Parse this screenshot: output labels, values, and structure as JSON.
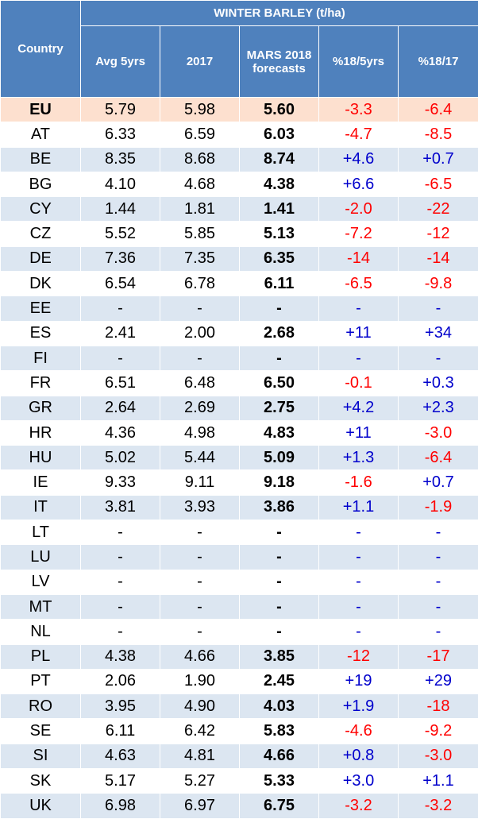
{
  "title": "WINTER BARLEY (t/ha)",
  "headers": {
    "country": "Country",
    "avg5": "Avg 5yrs",
    "y2017": "2017",
    "mars_line1": "MARS 2018",
    "mars_line2": "forecasts",
    "pct5": "%18/5yrs",
    "pct17": "%18/17"
  },
  "colors": {
    "header_bg": "#4f81bd",
    "band_blue": "#dce6f1",
    "eu_band": "#fde0cf",
    "negative": "#ff0000",
    "positive": "#0000cc"
  },
  "rows": [
    {
      "country": "EU",
      "avg5": "5.79",
      "y2017": "5.98",
      "mars": "5.60",
      "pct5": "-3.3",
      "pct17": "-6.4"
    },
    {
      "country": "AT",
      "avg5": "6.33",
      "y2017": "6.59",
      "mars": "6.03",
      "pct5": "-4.7",
      "pct17": "-8.5"
    },
    {
      "country": "BE",
      "avg5": "8.35",
      "y2017": "8.68",
      "mars": "8.74",
      "pct5": "+4.6",
      "pct17": "+0.7"
    },
    {
      "country": "BG",
      "avg5": "4.10",
      "y2017": "4.68",
      "mars": "4.38",
      "pct5": "+6.6",
      "pct17": "-6.5"
    },
    {
      "country": "CY",
      "avg5": "1.44",
      "y2017": "1.81",
      "mars": "1.41",
      "pct5": "-2.0",
      "pct17": "-22"
    },
    {
      "country": "CZ",
      "avg5": "5.52",
      "y2017": "5.85",
      "mars": "5.13",
      "pct5": "-7.2",
      "pct17": "-12"
    },
    {
      "country": "DE",
      "avg5": "7.36",
      "y2017": "7.35",
      "mars": "6.35",
      "pct5": "-14",
      "pct17": "-14"
    },
    {
      "country": "DK",
      "avg5": "6.54",
      "y2017": "6.78",
      "mars": "6.11",
      "pct5": "-6.5",
      "pct17": "-9.8"
    },
    {
      "country": "EE",
      "avg5": "-",
      "y2017": "-",
      "mars": "-",
      "pct5": "-",
      "pct17": "-"
    },
    {
      "country": "ES",
      "avg5": "2.41",
      "y2017": "2.00",
      "mars": "2.68",
      "pct5": "+11",
      "pct17": "+34"
    },
    {
      "country": "FI",
      "avg5": "-",
      "y2017": "-",
      "mars": "-",
      "pct5": "-",
      "pct17": "-"
    },
    {
      "country": "FR",
      "avg5": "6.51",
      "y2017": "6.48",
      "mars": "6.50",
      "pct5": "-0.1",
      "pct17": "+0.3"
    },
    {
      "country": "GR",
      "avg5": "2.64",
      "y2017": "2.69",
      "mars": "2.75",
      "pct5": "+4.2",
      "pct17": "+2.3"
    },
    {
      "country": "HR",
      "avg5": "4.36",
      "y2017": "4.98",
      "mars": "4.83",
      "pct5": "+11",
      "pct17": "-3.0"
    },
    {
      "country": "HU",
      "avg5": "5.02",
      "y2017": "5.44",
      "mars": "5.09",
      "pct5": "+1.3",
      "pct17": "-6.4"
    },
    {
      "country": "IE",
      "avg5": "9.33",
      "y2017": "9.11",
      "mars": "9.18",
      "pct5": "-1.6",
      "pct17": "+0.7"
    },
    {
      "country": "IT",
      "avg5": "3.81",
      "y2017": "3.93",
      "mars": "3.86",
      "pct5": "+1.1",
      "pct17": "-1.9"
    },
    {
      "country": "LT",
      "avg5": "-",
      "y2017": "-",
      "mars": "-",
      "pct5": "-",
      "pct17": "-"
    },
    {
      "country": "LU",
      "avg5": "-",
      "y2017": "-",
      "mars": "-",
      "pct5": "-",
      "pct17": "-"
    },
    {
      "country": "LV",
      "avg5": "-",
      "y2017": "-",
      "mars": "-",
      "pct5": "-",
      "pct17": "-"
    },
    {
      "country": "MT",
      "avg5": "-",
      "y2017": "-",
      "mars": "-",
      "pct5": "-",
      "pct17": "-"
    },
    {
      "country": "NL",
      "avg5": "-",
      "y2017": "-",
      "mars": "-",
      "pct5": "-",
      "pct17": "-"
    },
    {
      "country": "PL",
      "avg5": "4.38",
      "y2017": "4.66",
      "mars": "3.85",
      "pct5": "-12",
      "pct17": "-17"
    },
    {
      "country": "PT",
      "avg5": "2.06",
      "y2017": "1.90",
      "mars": "2.45",
      "pct5": "+19",
      "pct17": "+29"
    },
    {
      "country": "RO",
      "avg5": "3.95",
      "y2017": "4.90",
      "mars": "4.03",
      "pct5": "+1.9",
      "pct17": "-18"
    },
    {
      "country": "SE",
      "avg5": "6.11",
      "y2017": "6.42",
      "mars": "5.83",
      "pct5": "-4.6",
      "pct17": "-9.2"
    },
    {
      "country": "SI",
      "avg5": "4.63",
      "y2017": "4.81",
      "mars": "4.66",
      "pct5": "+0.8",
      "pct17": "-3.0"
    },
    {
      "country": "SK",
      "avg5": "5.17",
      "y2017": "5.27",
      "mars": "5.33",
      "pct5": "+3.0",
      "pct17": "+1.1"
    },
    {
      "country": "UK",
      "avg5": "6.98",
      "y2017": "6.97",
      "mars": "6.75",
      "pct5": "-3.2",
      "pct17": "-3.2"
    }
  ]
}
